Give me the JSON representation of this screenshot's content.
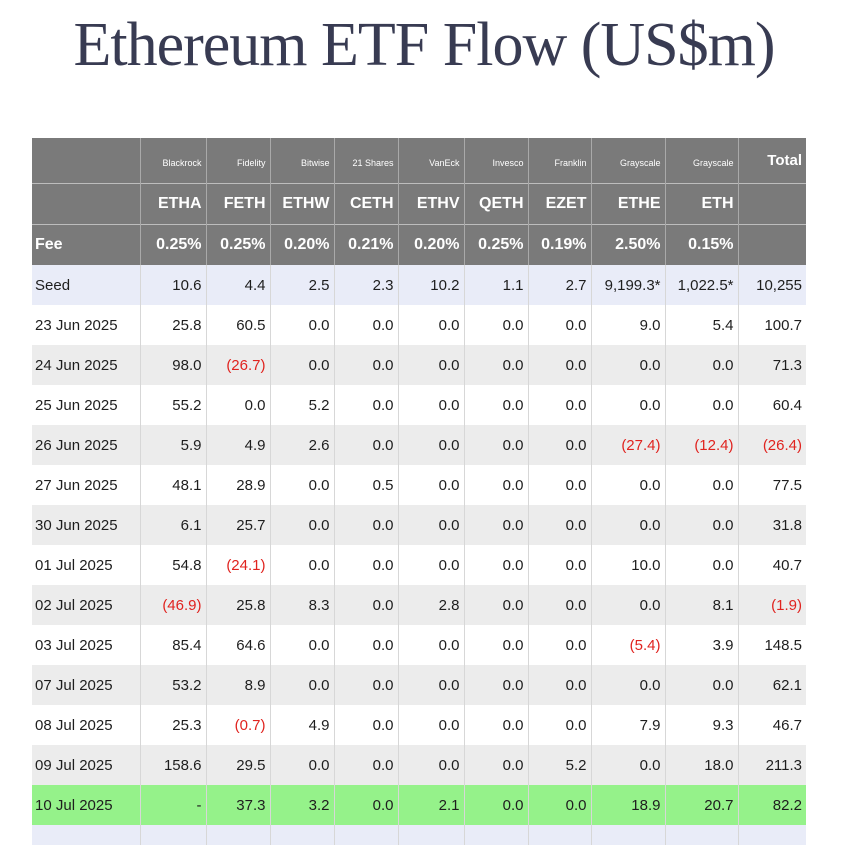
{
  "title": "Ethereum ETF Flow (US$m)",
  "header": {
    "issuers": [
      "Blackrock",
      "Fidelity",
      "Bitwise",
      "21 Shares",
      "VanEck",
      "Invesco",
      "Franklin",
      "Grayscale",
      "Grayscale"
    ],
    "total_label": "Total",
    "tickers": [
      "ETHA",
      "FETH",
      "ETHW",
      "CETH",
      "ETHV",
      "QETH",
      "EZET",
      "ETHE",
      "ETH"
    ],
    "fee_label": "Fee",
    "fees": [
      "0.25%",
      "0.25%",
      "0.20%",
      "0.21%",
      "0.20%",
      "0.25%",
      "0.19%",
      "2.50%",
      "0.15%"
    ]
  },
  "colors": {
    "header_bg": "#7a7a7a",
    "seed_bg": "#e9ecf8",
    "alt_row_bg": "#ececec",
    "latest_row_bg": "#95f28a",
    "negative_text": "#e0231f",
    "title_color": "#383b52"
  },
  "rows": [
    {
      "label": "Seed",
      "cells": [
        "10.6",
        "4.4",
        "2.5",
        "2.3",
        "10.2",
        "1.1",
        "2.7",
        "9,199.3*",
        "1,022.5*",
        "10,255"
      ]
    },
    {
      "label": "23 Jun 2025",
      "cells": [
        "25.8",
        "60.5",
        "0.0",
        "0.0",
        "0.0",
        "0.0",
        "0.0",
        "9.0",
        "5.4",
        "100.7"
      ]
    },
    {
      "label": "24 Jun 2025",
      "cells": [
        "98.0",
        "(26.7)",
        "0.0",
        "0.0",
        "0.0",
        "0.0",
        "0.0",
        "0.0",
        "0.0",
        "71.3"
      ]
    },
    {
      "label": "25 Jun 2025",
      "cells": [
        "55.2",
        "0.0",
        "5.2",
        "0.0",
        "0.0",
        "0.0",
        "0.0",
        "0.0",
        "0.0",
        "60.4"
      ]
    },
    {
      "label": "26 Jun 2025",
      "cells": [
        "5.9",
        "4.9",
        "2.6",
        "0.0",
        "0.0",
        "0.0",
        "0.0",
        "(27.4)",
        "(12.4)",
        "(26.4)"
      ]
    },
    {
      "label": "27 Jun 2025",
      "cells": [
        "48.1",
        "28.9",
        "0.0",
        "0.5",
        "0.0",
        "0.0",
        "0.0",
        "0.0",
        "0.0",
        "77.5"
      ]
    },
    {
      "label": "30 Jun 2025",
      "cells": [
        "6.1",
        "25.7",
        "0.0",
        "0.0",
        "0.0",
        "0.0",
        "0.0",
        "0.0",
        "0.0",
        "31.8"
      ]
    },
    {
      "label": "01 Jul 2025",
      "cells": [
        "54.8",
        "(24.1)",
        "0.0",
        "0.0",
        "0.0",
        "0.0",
        "0.0",
        "10.0",
        "0.0",
        "40.7"
      ]
    },
    {
      "label": "02 Jul 2025",
      "cells": [
        "(46.9)",
        "25.8",
        "8.3",
        "0.0",
        "2.8",
        "0.0",
        "0.0",
        "0.0",
        "8.1",
        "(1.9)"
      ]
    },
    {
      "label": "03 Jul 2025",
      "cells": [
        "85.4",
        "64.6",
        "0.0",
        "0.0",
        "0.0",
        "0.0",
        "0.0",
        "(5.4)",
        "3.9",
        "148.5"
      ]
    },
    {
      "label": "07 Jul 2025",
      "cells": [
        "53.2",
        "8.9",
        "0.0",
        "0.0",
        "0.0",
        "0.0",
        "0.0",
        "0.0",
        "0.0",
        "62.1"
      ]
    },
    {
      "label": "08 Jul 2025",
      "cells": [
        "25.3",
        "(0.7)",
        "4.9",
        "0.0",
        "0.0",
        "0.0",
        "0.0",
        "7.9",
        "9.3",
        "46.7"
      ]
    },
    {
      "label": "09 Jul 2025",
      "cells": [
        "158.6",
        "29.5",
        "0.0",
        "0.0",
        "0.0",
        "0.0",
        "5.2",
        "0.0",
        "18.0",
        "211.3"
      ]
    },
    {
      "label": "10 Jul 2025",
      "cells": [
        "-",
        "37.3",
        "3.2",
        "0.0",
        "2.1",
        "0.0",
        "0.0",
        "18.9",
        "20.7",
        "82.2"
      ]
    }
  ]
}
